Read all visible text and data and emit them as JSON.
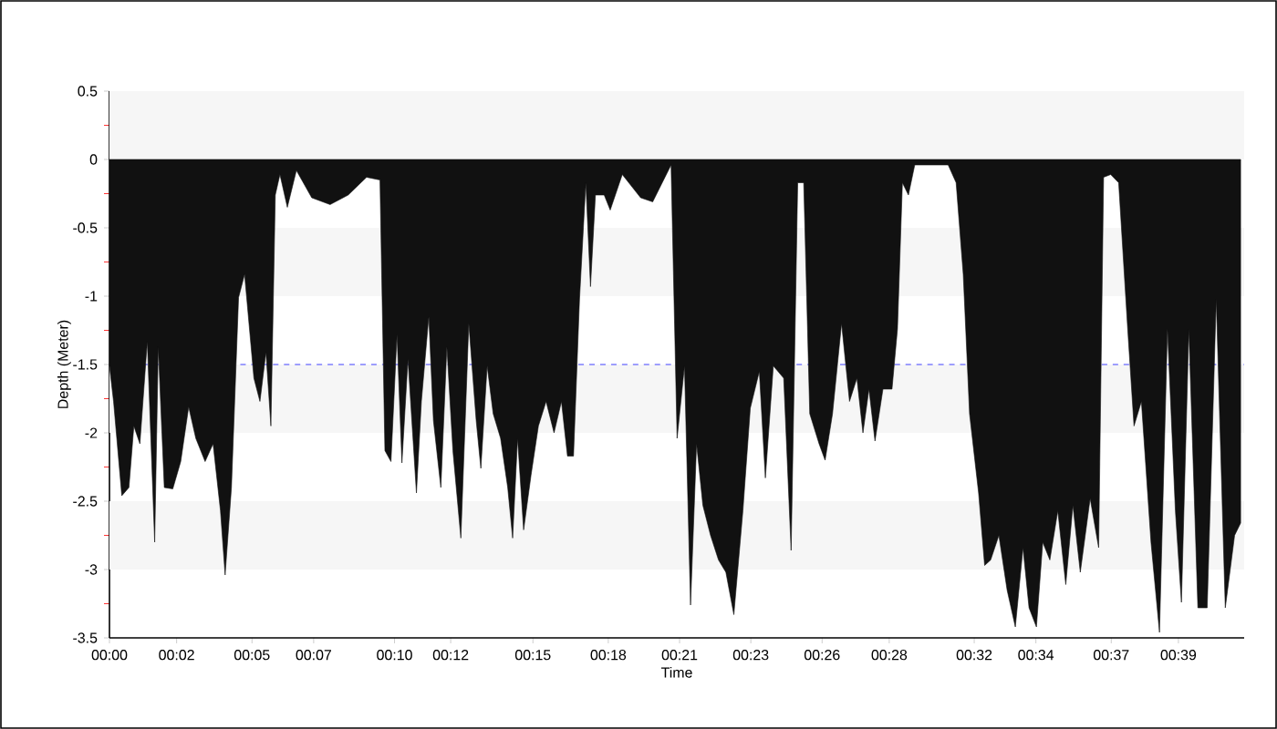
{
  "chart_data": {
    "type": "area",
    "xlabel": "Time",
    "ylabel": "Depth (Meter)",
    "color": "#111111",
    "x": [
      0,
      0.15,
      0.45,
      0.71,
      0.89,
      1.11,
      1.38,
      1.65,
      1.78,
      2.0,
      2.31,
      2.6,
      2.89,
      3.15,
      3.49,
      3.78,
      4.05,
      4.22,
      4.45,
      4.71,
      4.93,
      5.27,
      5.49,
      5.71,
      5.89,
      6.05,
      6.22,
      6.49,
      6.82,
      7.38,
      8.05,
      8.71,
      9.38,
      9.87,
      10.05,
      10.27,
      10.49,
      10.67,
      10.89,
      11.2,
      11.38,
      11.65,
      11.82,
      12.09,
      12.31,
      12.53,
      12.82,
      13.11,
      13.38,
      13.55,
      13.78,
      14.0,
      14.27,
      14.53,
      14.71,
      14.89,
      15.11,
      15.38,
      15.65,
      15.93,
      16.22,
      16.49,
      16.71,
      16.93,
      17.15,
      17.38,
      17.55,
      17.73,
      18.05,
      18.27,
      18.71,
      19.38,
      19.82,
      20.49,
      20.71,
      20.98,
      21.2,
      21.42,
      21.65,
      21.93,
      22.22,
      22.49,
      22.78,
      23.11,
      23.38,
      23.71,
      23.93,
      24.22,
      24.6,
      24.87,
      25.11,
      25.33,
      25.55,
      25.89,
      26.11,
      26.38,
      26.71,
      27.0,
      27.27,
      27.49,
      27.71,
      27.93,
      28.22,
      28.55,
      28.75,
      28.93,
      29.15,
      29.38,
      29.82,
      30.6,
      30.89,
      31.15,
      31.38,
      31.71,
      31.93,
      32.15,
      32.45,
      32.75,
      33.05,
      33.33,
      33.55,
      33.82,
      34.05,
      34.31,
      34.6,
      34.89,
      35.15,
      35.42,
      35.78,
      36.09,
      36.27,
      36.53,
      36.82,
      37.15,
      37.38,
      37.65,
      38.0,
      38.31,
      38.6,
      38.89,
      39.11,
      39.38,
      39.71,
      40.05,
      40.38,
      40.71,
      41.05,
      41.27
    ],
    "values": [
      -1.51,
      -1.77,
      -2.46,
      -2.4,
      -1.95,
      -2.08,
      -1.33,
      -2.8,
      -1.37,
      -2.4,
      -2.41,
      -2.21,
      -1.81,
      -2.04,
      -2.21,
      -2.08,
      -2.57,
      -3.04,
      -2.4,
      -1.01,
      -0.84,
      -1.6,
      -1.77,
      -1.41,
      -1.95,
      -0.26,
      -0.11,
      -0.35,
      -0.08,
      -0.28,
      -0.33,
      -0.26,
      -0.13,
      -0.15,
      -2.13,
      -2.21,
      -1.28,
      -2.22,
      -1.46,
      -2.44,
      -1.77,
      -1.15,
      -1.91,
      -2.4,
      -1.37,
      -2.13,
      -2.77,
      -1.2,
      -1.91,
      -2.26,
      -1.51,
      -1.86,
      -2.04,
      -2.4,
      -2.77,
      -2.04,
      -2.71,
      -2.31,
      -1.95,
      -1.77,
      -2.0,
      -1.77,
      -2.17,
      -2.17,
      -1.02,
      -0.17,
      -0.93,
      -0.26,
      -0.26,
      -0.37,
      -0.11,
      -0.28,
      -0.31,
      -0.04,
      -2.04,
      -1.51,
      -3.26,
      -2.08,
      -2.53,
      -2.75,
      -2.93,
      -3.02,
      -3.33,
      -2.57,
      -1.82,
      -1.55,
      -2.33,
      -1.51,
      -1.6,
      -2.86,
      -0.17,
      -0.17,
      -1.86,
      -2.08,
      -2.2,
      -1.86,
      -1.2,
      -1.77,
      -1.6,
      -2.0,
      -1.68,
      -2.06,
      -1.68,
      -1.68,
      -1.24,
      -0.17,
      -0.26,
      -0.04,
      -0.04,
      -0.04,
      -0.17,
      -0.84,
      -1.86,
      -2.44,
      -2.97,
      -2.93,
      -2.75,
      -3.15,
      -3.42,
      -2.84,
      -3.28,
      -3.42,
      -2.8,
      -2.93,
      -2.57,
      -3.11,
      -2.53,
      -3.02,
      -2.48,
      -2.84,
      -0.13,
      -0.11,
      -0.17,
      -1.24,
      -1.95,
      -1.77,
      -2.8,
      -3.46,
      -1.24,
      -2.57,
      -3.24,
      -1.24,
      -3.28,
      -3.28,
      -1.02,
      -3.28,
      -2.75,
      -2.66
    ],
    "xlim": [
      0,
      41.4
    ],
    "ylim": [
      -3.5,
      0.5
    ],
    "xticks": [
      {
        "value": 0,
        "label": "00:00"
      },
      {
        "value": 2.45,
        "label": "00:02"
      },
      {
        "value": 5.2,
        "label": "00:05"
      },
      {
        "value": 7.45,
        "label": "00:07"
      },
      {
        "value": 10.4,
        "label": "00:10"
      },
      {
        "value": 12.45,
        "label": "00:12"
      },
      {
        "value": 15.45,
        "label": "00:15"
      },
      {
        "value": 18.2,
        "label": "00:18"
      },
      {
        "value": 20.8,
        "label": "00:21"
      },
      {
        "value": 23.4,
        "label": "00:23"
      },
      {
        "value": 26,
        "label": "00:26"
      },
      {
        "value": 28.45,
        "label": "00:28"
      },
      {
        "value": 31.55,
        "label": "00:32"
      },
      {
        "value": 33.8,
        "label": "00:34"
      },
      {
        "value": 36.55,
        "label": "00:37"
      },
      {
        "value": 39,
        "label": "00:39"
      }
    ],
    "yticks": [
      0.5,
      0,
      -0.5,
      -1,
      -1.5,
      -2,
      -2.5,
      -3,
      -3.5
    ],
    "bands": [
      {
        "axis": "y",
        "from": 0,
        "to": 0.5,
        "color": "#f6f6f6"
      },
      {
        "axis": "y",
        "from": -1,
        "to": -0.5,
        "color": "#f6f6f6"
      },
      {
        "axis": "y",
        "from": -2,
        "to": -1.5,
        "color": "#f6f6f6"
      },
      {
        "axis": "y",
        "from": -3,
        "to": -2.5,
        "color": "#f6f6f6"
      }
    ],
    "ref_lines": [
      {
        "axis": "y",
        "value": -1.5,
        "color": "#4040ff",
        "line_style": "dashed"
      }
    ]
  }
}
